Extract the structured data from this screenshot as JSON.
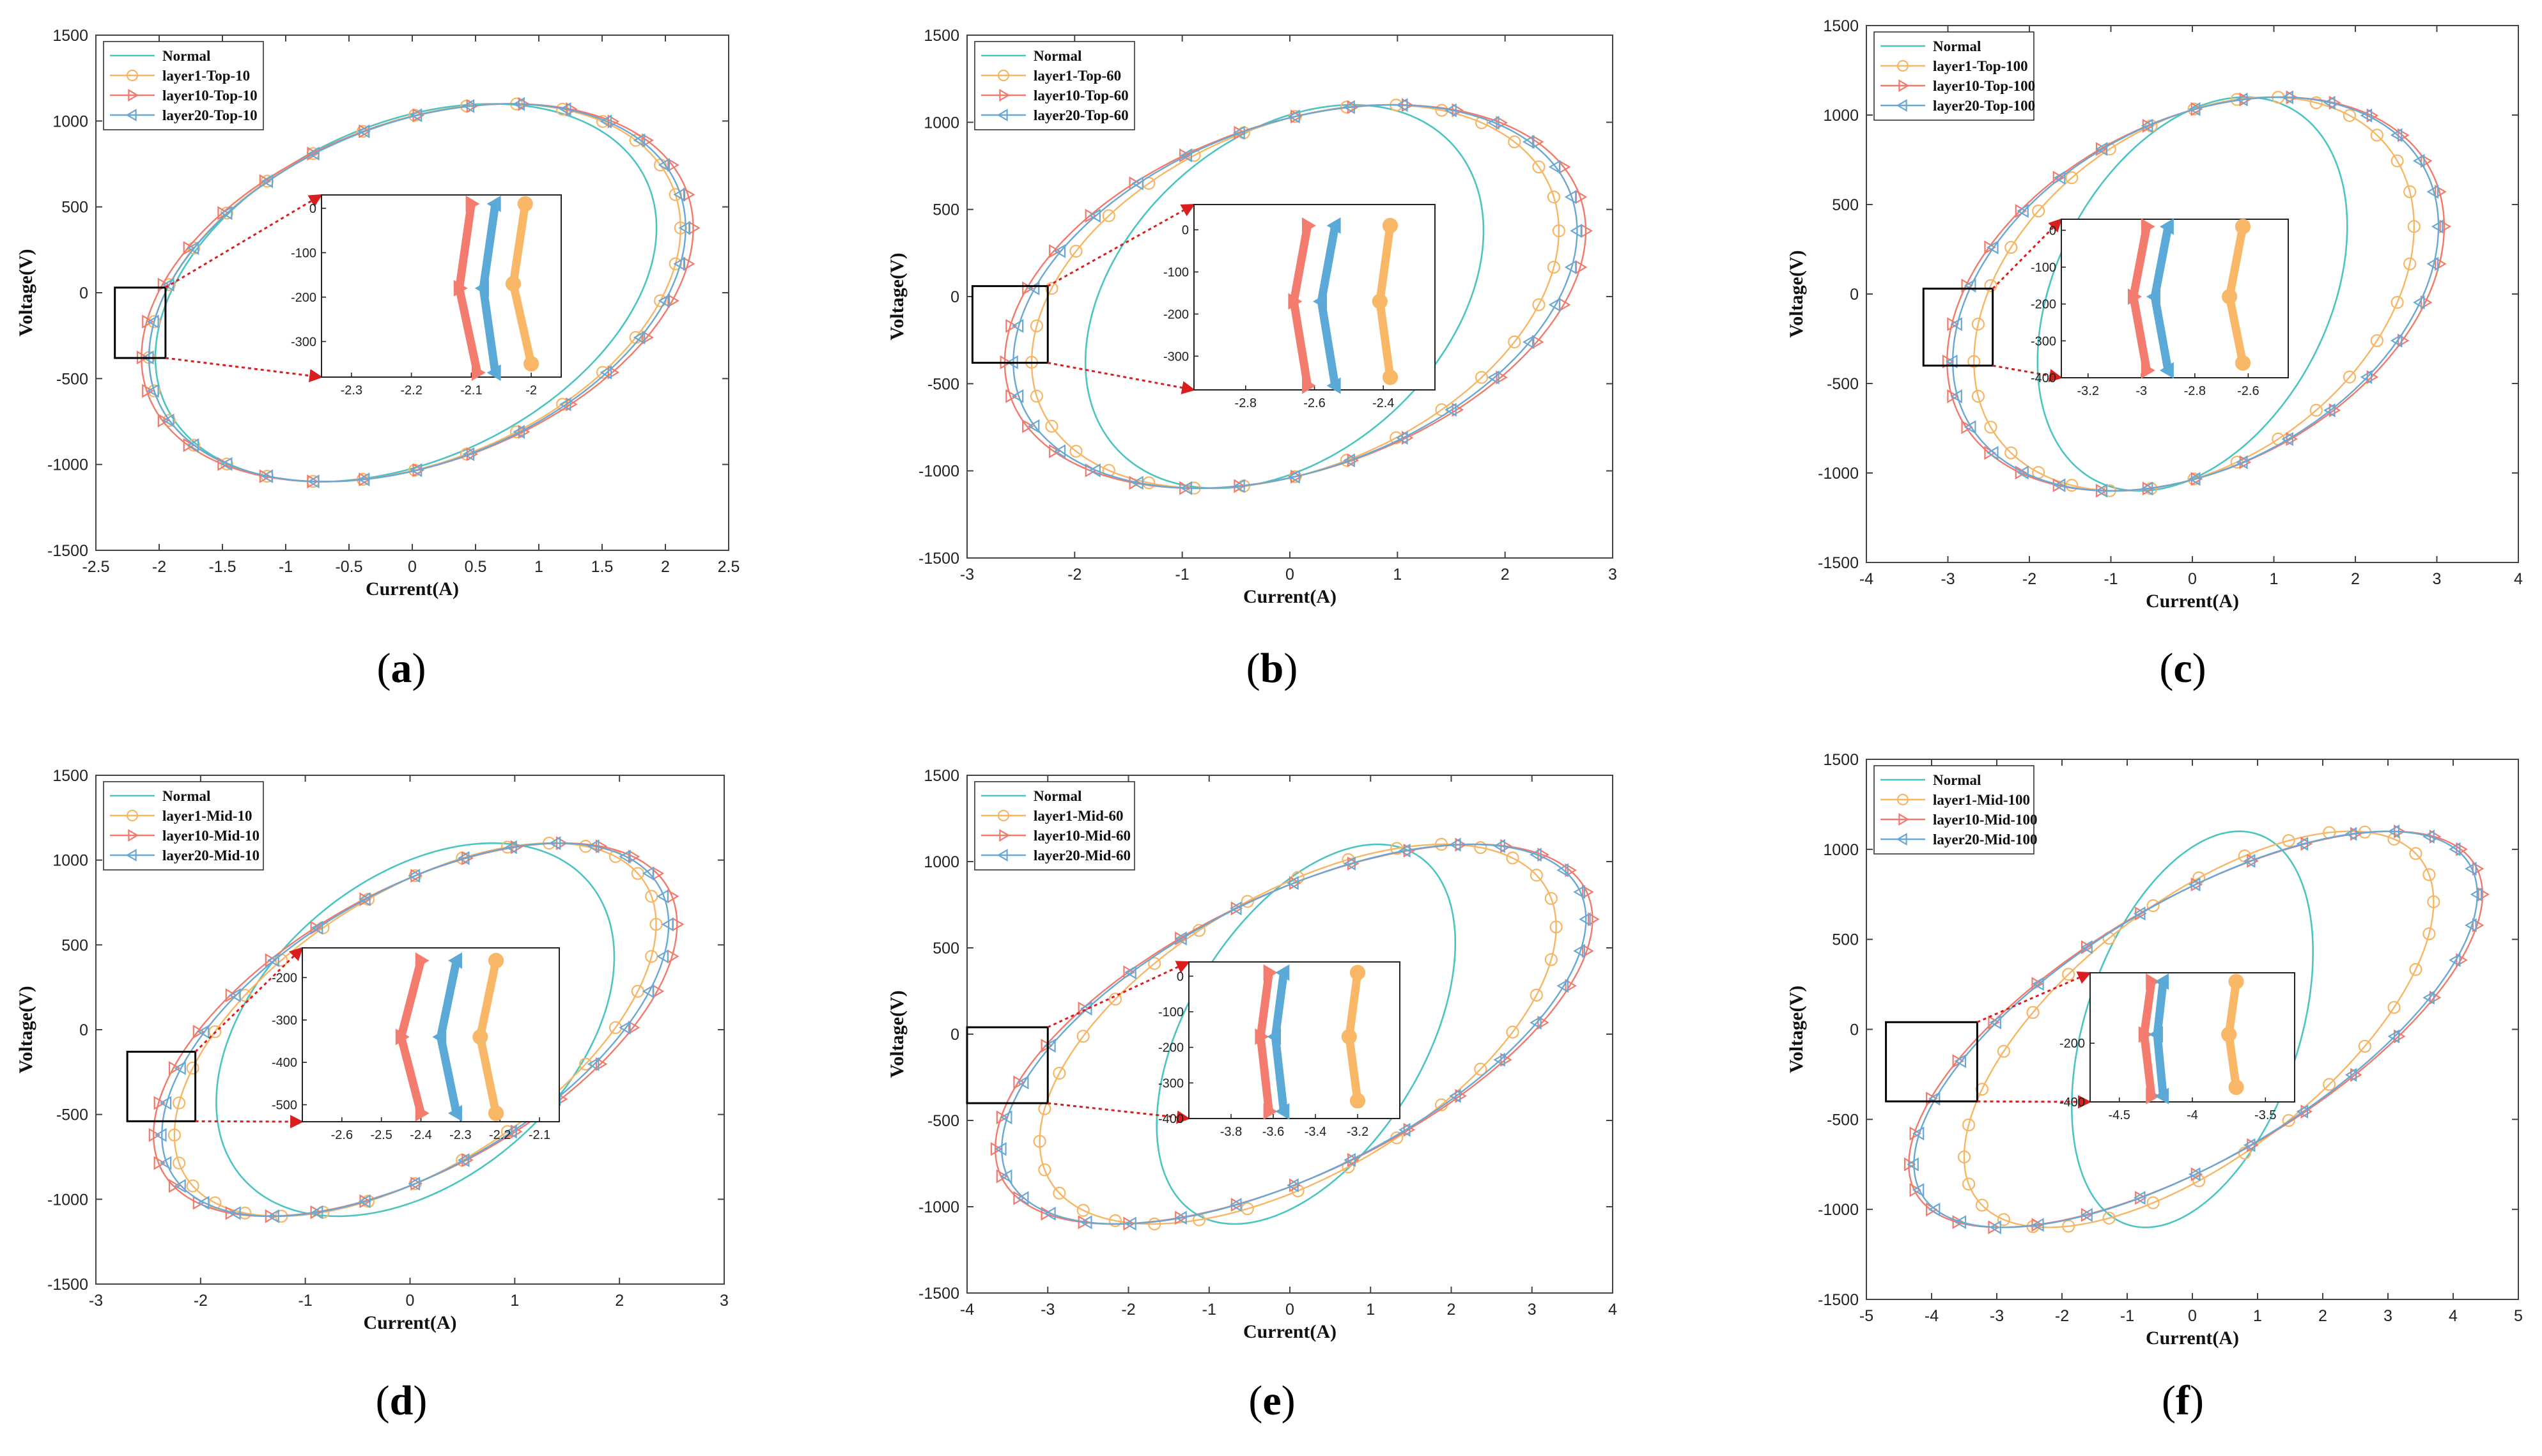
{
  "figure": {
    "colors": {
      "normal": "#4cc4c0",
      "layer1": "#f7b665",
      "layer10": "#f07a6c",
      "layer20": "#6aa8d4",
      "layer1_zoom": "#f8b868",
      "layer10_zoom": "#f47c6e",
      "layer20_zoom": "#5aa9d6",
      "zoom_arrow": "#d81e1e"
    }
  },
  "chart_data": [
    {
      "type": "line",
      "panel_label": "(a)",
      "panel_letter": "a",
      "xlabel": "Current(A)",
      "ylabel": "Voltage(V)",
      "xlim": [
        -2.5,
        2.5
      ],
      "ylim": [
        -1500,
        1500
      ],
      "xticks": [
        -2.5,
        -2,
        -1.5,
        -1,
        -0.5,
        0,
        0.5,
        1,
        1.5,
        2,
        2.5
      ],
      "yticks": [
        -1500,
        -1000,
        -500,
        0,
        500,
        1000,
        1500
      ],
      "legend": [
        "Normal",
        "layer1-Top-10",
        "layer10-Top-10",
        "layer20-Top-10"
      ],
      "voltage_amplitude": 1100,
      "series": [
        {
          "name": "Normal",
          "center": -0.05,
          "amplitude": 1.98,
          "skew": 0.35,
          "markers": 0
        },
        {
          "name": "layer1-Top-10",
          "center": 0.02,
          "amplitude": 2.1,
          "skew": 0.35,
          "markers": 32
        },
        {
          "name": "layer10-Top-10",
          "center": 0.04,
          "amplitude": 2.18,
          "skew": 0.35,
          "markers": 32
        },
        {
          "name": "layer20-Top-10",
          "center": 0.04,
          "amplitude": 2.12,
          "skew": 0.35,
          "markers": 32
        }
      ],
      "zoom": {
        "xlim": [
          -2.35,
          -1.95
        ],
        "ylim": [
          -380,
          30
        ],
        "xticks": [
          -2.3,
          -2.2,
          -2.1,
          -2
        ],
        "yticks": [
          -300,
          -200,
          -100,
          0
        ],
        "curves": [
          {
            "name": "layer10-Top-10",
            "x": [
              -2.09,
              -2.12,
              -2.1
            ],
            "y": [
              -370,
              -180,
              10
            ]
          },
          {
            "name": "layer20-Top-10",
            "x": [
              -2.06,
              -2.08,
              -2.06
            ],
            "y": [
              -370,
              -180,
              10
            ]
          },
          {
            "name": "layer1-Top-10",
            "x": [
              -2.0,
              -2.03,
              -2.01
            ],
            "y": [
              -350,
              -170,
              10
            ]
          }
        ]
      }
    },
    {
      "type": "line",
      "panel_label": "(b)",
      "panel_letter": "b",
      "xlabel": "Current(A)",
      "ylabel": "Voltage(V)",
      "xlim": [
        -3,
        3
      ],
      "ylim": [
        -1500,
        1500
      ],
      "xticks": [
        -3,
        -2,
        -1,
        0,
        1,
        2,
        3
      ],
      "yticks": [
        -1500,
        -1000,
        -500,
        0,
        500,
        1000,
        1500
      ],
      "legend": [
        "Normal",
        "layer1-Top-60",
        "layer10-Top-60",
        "layer20-Top-60"
      ],
      "voltage_amplitude": 1100,
      "series": [
        {
          "name": "Normal",
          "center": -0.05,
          "amplitude": 1.85,
          "skew": 0.35,
          "markers": 0
        },
        {
          "name": "layer1-Top-60",
          "center": 0.05,
          "amplitude": 2.45,
          "skew": 0.35,
          "markers": 32
        },
        {
          "name": "layer10-Top-60",
          "center": 0.05,
          "amplitude": 2.7,
          "skew": 0.35,
          "markers": 32
        },
        {
          "name": "layer20-Top-60",
          "center": 0.05,
          "amplitude": 2.62,
          "skew": 0.35,
          "markers": 32
        }
      ],
      "zoom": {
        "xlim": [
          -2.95,
          -2.25
        ],
        "ylim": [
          -380,
          60
        ],
        "xticks": [
          -2.8,
          -2.6,
          -2.4
        ],
        "yticks": [
          -300,
          -200,
          -100,
          0
        ],
        "curves": [
          {
            "name": "layer10-Top-60",
            "x": [
              -2.62,
              -2.66,
              -2.62
            ],
            "y": [
              -370,
              -170,
              10
            ]
          },
          {
            "name": "layer20-Top-60",
            "x": [
              -2.54,
              -2.58,
              -2.54
            ],
            "y": [
              -370,
              -170,
              10
            ]
          },
          {
            "name": "layer1-Top-60",
            "x": [
              -2.38,
              -2.41,
              -2.38
            ],
            "y": [
              -350,
              -170,
              10
            ]
          }
        ]
      }
    },
    {
      "type": "line",
      "panel_label": "(c)",
      "panel_letter": "c",
      "xlabel": "Current(A)",
      "ylabel": "Voltage(V)",
      "xlim": [
        -4,
        4
      ],
      "ylim": [
        -1500,
        1500
      ],
      "xticks": [
        -4,
        -3,
        -2,
        -1,
        0,
        1,
        2,
        3,
        4
      ],
      "yticks": [
        -1500,
        -1000,
        -500,
        0,
        500,
        1000,
        1500
      ],
      "legend": [
        "Normal",
        "layer1-Top-100",
        "layer10-Top-100",
        "layer20-Top-100"
      ],
      "voltage_amplitude": 1100,
      "series": [
        {
          "name": "Normal",
          "center": 0.0,
          "amplitude": 1.9,
          "skew": 0.35,
          "markers": 0
        },
        {
          "name": "layer1-Top-100",
          "center": 0.02,
          "amplitude": 2.7,
          "skew": 0.35,
          "markers": 32
        },
        {
          "name": "layer10-Top-100",
          "center": 0.04,
          "amplitude": 3.05,
          "skew": 0.35,
          "markers": 32
        },
        {
          "name": "layer20-Top-100",
          "center": 0.04,
          "amplitude": 2.98,
          "skew": 0.35,
          "markers": 32
        }
      ],
      "zoom": {
        "xlim": [
          -3.3,
          -2.45
        ],
        "ylim": [
          -400,
          30
        ],
        "xticks": [
          -3.2,
          -3,
          -2.8,
          -2.6
        ],
        "yticks": [
          -400,
          -300,
          -200,
          -100,
          0
        ],
        "curves": [
          {
            "name": "layer10-Top-100",
            "x": [
              -2.98,
              -3.03,
              -2.98
            ],
            "y": [
              -380,
              -180,
              10
            ]
          },
          {
            "name": "layer20-Top-100",
            "x": [
              -2.9,
              -2.95,
              -2.9
            ],
            "y": [
              -380,
              -180,
              10
            ]
          },
          {
            "name": "layer1-Top-100",
            "x": [
              -2.62,
              -2.67,
              -2.62
            ],
            "y": [
              -360,
              -180,
              10
            ]
          }
        ]
      }
    },
    {
      "type": "line",
      "panel_label": "(d)",
      "panel_letter": "d",
      "xlabel": "Current(A)",
      "ylabel": "Voltage(V)",
      "xlim": [
        -3,
        3
      ],
      "ylim": [
        -1500,
        1500
      ],
      "xticks": [
        -3,
        -2,
        -1,
        0,
        1,
        2,
        3
      ],
      "yticks": [
        -1500,
        -1000,
        -500,
        0,
        500,
        1000,
        1500
      ],
      "legend": [
        "Normal",
        "layer1-Mid-10",
        "layer10-Mid-10",
        "layer20-Mid-10"
      ],
      "voltage_amplitude": 1100,
      "series": [
        {
          "name": "Normal",
          "center": 0.05,
          "amplitude": 1.9,
          "skew": 0.4,
          "markers": 0
        },
        {
          "name": "layer1-Mid-10",
          "center": 0.05,
          "amplitude": 2.3,
          "skew": 0.6,
          "markers": 32
        },
        {
          "name": "layer10-Mid-10",
          "center": 0.05,
          "amplitude": 2.5,
          "skew": 0.6,
          "markers": 32
        },
        {
          "name": "layer20-Mid-10",
          "center": 0.05,
          "amplitude": 2.42,
          "skew": 0.6,
          "markers": 32
        }
      ],
      "zoom": {
        "xlim": [
          -2.7,
          -2.05
        ],
        "ylim": [
          -540,
          -130
        ],
        "xticks": [
          -2.6,
          -2.5,
          -2.4,
          -2.3,
          -2.2,
          -2.1
        ],
        "yticks": [
          -500,
          -400,
          -300,
          -200
        ],
        "curves": [
          {
            "name": "layer10-Mid-10",
            "x": [
              -2.4,
              -2.45,
              -2.4
            ],
            "y": [
              -520,
              -340,
              -160
            ]
          },
          {
            "name": "layer20-Mid-10",
            "x": [
              -2.31,
              -2.35,
              -2.31
            ],
            "y": [
              -520,
              -340,
              -160
            ]
          },
          {
            "name": "layer1-Mid-10",
            "x": [
              -2.21,
              -2.25,
              -2.21
            ],
            "y": [
              -520,
              -340,
              -160
            ]
          }
        ]
      }
    },
    {
      "type": "line",
      "panel_label": "(e)",
      "panel_letter": "e",
      "xlabel": "Current(A)",
      "ylabel": "Voltage(V)",
      "xlim": [
        -4,
        4
      ],
      "ylim": [
        -1500,
        1500
      ],
      "xticks": [
        -4,
        -3,
        -2,
        -1,
        0,
        1,
        2,
        3,
        4
      ],
      "yticks": [
        -1500,
        -1000,
        -500,
        0,
        500,
        1000,
        1500
      ],
      "legend": [
        "Normal",
        "layer1-Mid-60",
        "layer10-Mid-60",
        "layer20-Mid-60"
      ],
      "voltage_amplitude": 1100,
      "series": [
        {
          "name": "Normal",
          "center": 0.2,
          "amplitude": 1.85,
          "skew": 0.5,
          "markers": 0
        },
        {
          "name": "layer1-Mid-60",
          "center": 0.1,
          "amplitude": 3.2,
          "skew": 0.6,
          "markers": 32
        },
        {
          "name": "layer10-Mid-60",
          "center": 0.05,
          "amplitude": 3.7,
          "skew": 0.65,
          "markers": 32
        },
        {
          "name": "layer20-Mid-60",
          "center": 0.05,
          "amplitude": 3.62,
          "skew": 0.65,
          "markers": 32
        }
      ],
      "zoom": {
        "xlim": [
          -4.0,
          -3.0
        ],
        "ylim": [
          -400,
          40
        ],
        "xticks": [
          -3.8,
          -3.6,
          -3.4,
          -3.2
        ],
        "yticks": [
          -400,
          -300,
          -200,
          -100,
          0
        ],
        "curves": [
          {
            "name": "layer10-Mid-60",
            "x": [
              -3.62,
              -3.66,
              -3.62
            ],
            "y": [
              -380,
              -170,
              10
            ]
          },
          {
            "name": "layer20-Mid-60",
            "x": [
              -3.55,
              -3.59,
              -3.55
            ],
            "y": [
              -380,
              -170,
              10
            ]
          },
          {
            "name": "layer1-Mid-60",
            "x": [
              -3.2,
              -3.24,
              -3.2
            ],
            "y": [
              -350,
              -170,
              10
            ]
          }
        ]
      }
    },
    {
      "type": "line",
      "panel_label": "(f)",
      "panel_letter": "f",
      "xlabel": "Current(A)",
      "ylabel": "Voltage(V)",
      "xlim": [
        -5,
        5
      ],
      "ylim": [
        -1500,
        1500
      ],
      "xticks": [
        -5,
        -4,
        -3,
        -2,
        -1,
        0,
        1,
        2,
        3,
        4,
        5
      ],
      "yticks": [
        -1500,
        -1000,
        -500,
        0,
        500,
        1000,
        1500
      ],
      "legend": [
        "Normal",
        "layer1-Mid-100",
        "layer10-Mid-100",
        "layer20-Mid-100"
      ],
      "voltage_amplitude": 1100,
      "series": [
        {
          "name": "Normal",
          "center": 0.0,
          "amplitude": 1.85,
          "skew": 0.4,
          "markers": 0
        },
        {
          "name": "layer1-Mid-100",
          "center": 0.1,
          "amplitude": 3.6,
          "skew": 0.7,
          "markers": 32
        },
        {
          "name": "layer10-Mid-100",
          "center": 0.05,
          "amplitude": 4.4,
          "skew": 0.75,
          "markers": 32
        },
        {
          "name": "layer20-Mid-100",
          "center": 0.05,
          "amplitude": 4.32,
          "skew": 0.75,
          "markers": 32
        }
      ],
      "zoom": {
        "xlim": [
          -4.7,
          -3.3
        ],
        "ylim": [
          -400,
          40
        ],
        "xticks": [
          -4.5,
          -4,
          -3.5
        ],
        "yticks": [
          -400,
          -200
        ],
        "curves": [
          {
            "name": "layer10-Mid-100",
            "x": [
              -4.28,
              -4.33,
              -4.28
            ],
            "y": [
              -380,
              -170,
              10
            ]
          },
          {
            "name": "layer20-Mid-100",
            "x": [
              -4.2,
              -4.24,
              -4.2
            ],
            "y": [
              -380,
              -170,
              10
            ]
          },
          {
            "name": "layer1-Mid-100",
            "x": [
              -3.7,
              -3.75,
              -3.7
            ],
            "y": [
              -350,
              -170,
              10
            ]
          }
        ]
      }
    }
  ]
}
